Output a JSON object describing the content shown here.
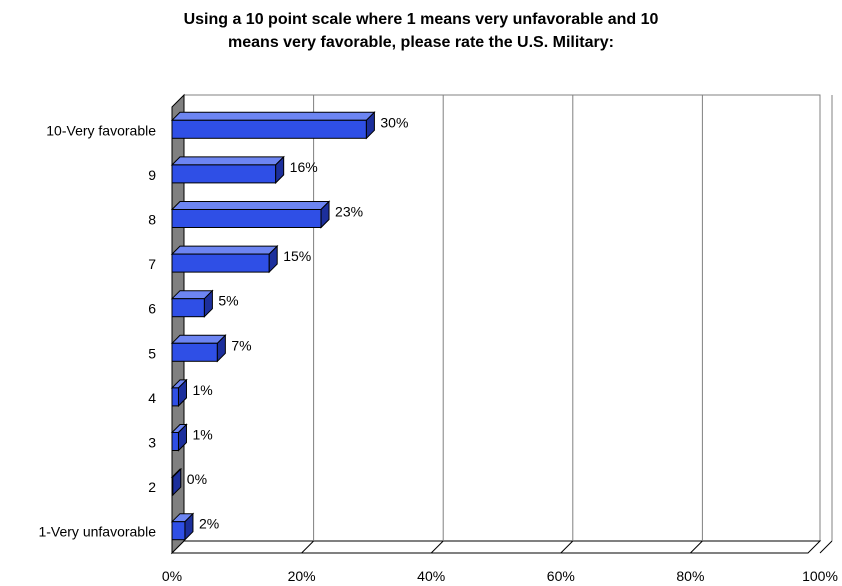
{
  "chart_data": {
    "type": "bar",
    "orientation": "horizontal",
    "style": "3d",
    "title": [
      "Using a 10 point scale where 1 means very unfavorable and 10",
      "means very favorable, please rate the U.S. Military:"
    ],
    "categories": [
      "10-Very favorable",
      "9",
      "8",
      "7",
      "6",
      "5",
      "4",
      "3",
      "2",
      "1-Very unfavorable"
    ],
    "values": [
      30,
      16,
      23,
      15,
      5,
      7,
      1,
      1,
      0,
      2
    ],
    "value_labels": [
      "30%",
      "16%",
      "23%",
      "15%",
      "5%",
      "7%",
      "1%",
      "1%",
      "0%",
      "2%"
    ],
    "xlim": [
      0,
      100
    ],
    "x_ticks": [
      "0%",
      "20%",
      "40%",
      "60%",
      "80%",
      "100%"
    ],
    "grid": true,
    "colors": {
      "bar_front": "#2f4fe6",
      "bar_top": "#6d85f2",
      "bar_side": "#1c2f9c",
      "wall": "#808080",
      "gridline": "#808080"
    }
  }
}
